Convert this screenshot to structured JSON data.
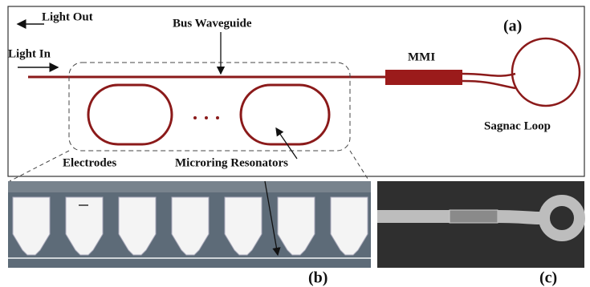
{
  "panel_a": {
    "label": "(a)",
    "light_out": "Light Out",
    "light_in": "Light In",
    "bus_waveguide": "Bus Waveguide",
    "mmi": "MMI",
    "sagnac_loop": "Sagnac Loop",
    "electrodes": "Electrodes",
    "microring_resonators": "Microring Resonators"
  },
  "panel_b": {
    "label": "(b)"
  },
  "panel_c": {
    "label": "(c)"
  }
}
